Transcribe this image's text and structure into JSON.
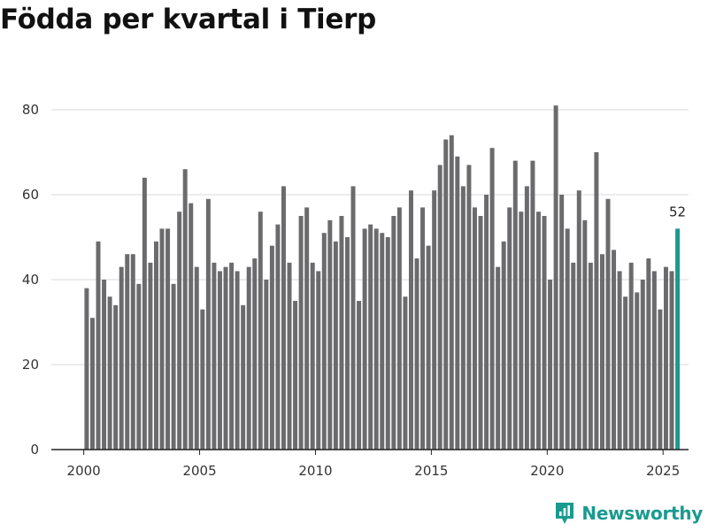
{
  "title": "Födda per kvartal i Tierp",
  "brand": {
    "name": "Newsworthy",
    "icon": "newsworthy-logo-icon",
    "color": "#1a9a8f"
  },
  "colors": {
    "bar": "#6b6b6e",
    "highlight": "#1a9a8f",
    "grid": "#d9d9d9",
    "axis": "#222222"
  },
  "chart_data": {
    "type": "bar",
    "title": "Födda per kvartal i Tierp",
    "xlabel": "",
    "ylabel": "",
    "ylim": [
      0,
      85
    ],
    "xlim": [
      1998.6,
      2026.1
    ],
    "yticks": [
      0,
      20,
      40,
      60,
      80
    ],
    "xticks": [
      2000,
      2005,
      2010,
      2015,
      2020,
      2025
    ],
    "grid": true,
    "start": {
      "year": 2000,
      "quarter": 1
    },
    "values": [
      38,
      31,
      49,
      40,
      36,
      34,
      43,
      46,
      46,
      39,
      64,
      44,
      49,
      52,
      52,
      39,
      56,
      66,
      58,
      43,
      33,
      59,
      44,
      42,
      43,
      44,
      42,
      34,
      43,
      45,
      56,
      40,
      48,
      53,
      62,
      44,
      35,
      55,
      57,
      44,
      42,
      51,
      54,
      49,
      55,
      50,
      62,
      35,
      52,
      53,
      52,
      51,
      50,
      55,
      57,
      36,
      61,
      45,
      57,
      48,
      61,
      67,
      73,
      74,
      69,
      62,
      67,
      57,
      55,
      60,
      71,
      43,
      49,
      57,
      68,
      56,
      62,
      68,
      56,
      55,
      40,
      81,
      60,
      52,
      44,
      61,
      54,
      44,
      70,
      46,
      59,
      47,
      42,
      36,
      44,
      37,
      40,
      45,
      42,
      33,
      43,
      42,
      52
    ],
    "highlight_last": true,
    "data_labels": [
      {
        "index": 102,
        "text": "52"
      }
    ]
  }
}
